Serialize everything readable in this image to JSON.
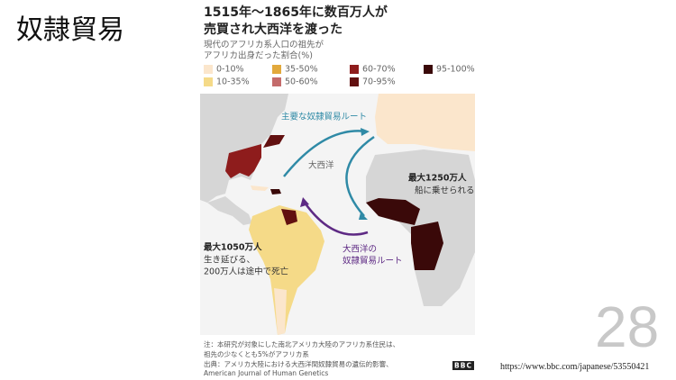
{
  "slide_title": "奴隷貿易",
  "page_number": "28",
  "url": "https://www.bbc.com/japanese/53550421",
  "infographic": {
    "title": [
      "1515年～1865年に数百万人が",
      "売買され大西洋を渡った"
    ],
    "subtitle": [
      "現代のアフリカ系人口の祖先が",
      "アフリカ出身だった割合(%)"
    ],
    "legend": [
      {
        "label": "0-10%",
        "color": "#fbe6cc"
      },
      {
        "label": "10-35%",
        "color": "#f5da88"
      },
      {
        "label": "35-50%",
        "color": "#e2a93c"
      },
      {
        "label": "50-60%",
        "color": "#c46b6b"
      },
      {
        "label": "60-70%",
        "color": "#8e1c1c"
      },
      {
        "label": "70-95%",
        "color": "#621010"
      },
      {
        "label": "95-100%",
        "color": "#3a0909"
      }
    ],
    "annotations": {
      "main_route": "主要な奴隷貿易ルート",
      "ocean": "大西洋",
      "africa": [
        "最大1250万人",
        "船に乗せられる"
      ],
      "atlantic_route": [
        "大西洋の",
        "奴隷貿易ルート"
      ],
      "americas": [
        "最大1050万人",
        "生き延びる、",
        "200万人は途中で死亡"
      ]
    },
    "notes": [
      "注：本研究が対象にした南北アメリカ大陸のアフリカ系住民は、",
      "祖先の少なくとも5%がアフリカ系"
    ],
    "source": [
      "出典：アメリカ大陸における大西洋間奴隷貿易の遺伝的影響、",
      "American Journal of Human Genetics"
    ],
    "logo": "BBC"
  }
}
